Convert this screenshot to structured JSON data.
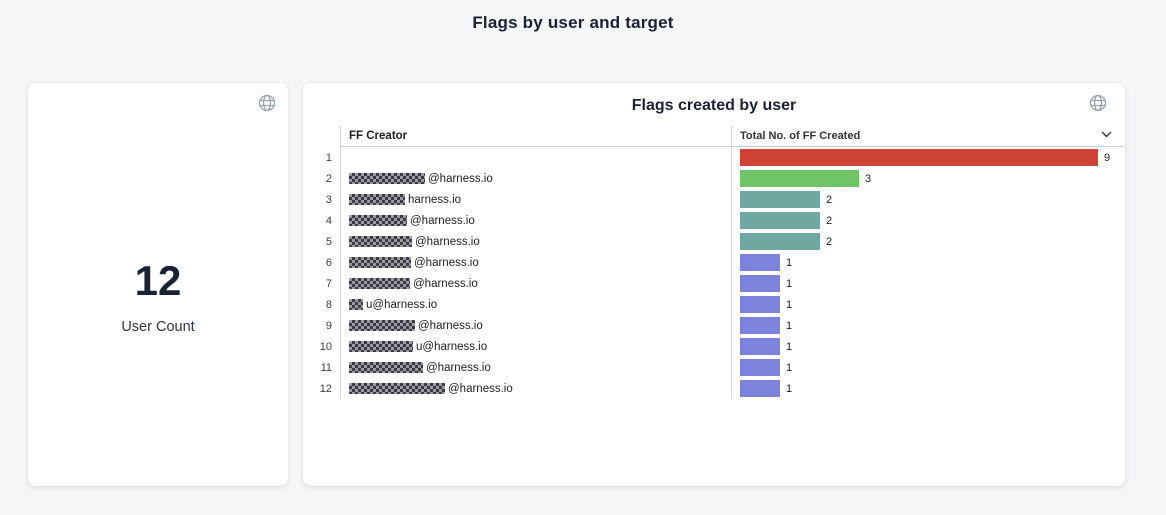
{
  "page": {
    "title": "Flags by user and target",
    "background": "#f4f6f8"
  },
  "user_count_card": {
    "value": "12",
    "label": "User Count"
  },
  "flags_card": {
    "title": "Flags created by user",
    "columns": {
      "creator": "FF Creator",
      "total": "Total No. of FF Created"
    },
    "max_value": 9,
    "rows": [
      {
        "num": "1",
        "creator_visible": "",
        "redact_width": 0,
        "value": 9,
        "color": "#ce4336"
      },
      {
        "num": "2",
        "creator_visible": " @harness.io",
        "redact_width": 76,
        "value": 3,
        "color": "#6fc465"
      },
      {
        "num": "3",
        "creator_visible": "harness.io",
        "redact_width": 56,
        "value": 2,
        "color": "#6fa8a0"
      },
      {
        "num": "4",
        "creator_visible": "@harness.io",
        "redact_width": 58,
        "value": 2,
        "color": "#6fa8a0"
      },
      {
        "num": "5",
        "creator_visible": "@harness.io",
        "redact_width": 63,
        "value": 2,
        "color": "#6fa8a0"
      },
      {
        "num": "6",
        "creator_visible": "@harness.io",
        "redact_width": 62,
        "value": 1,
        "color": "#7b83dc"
      },
      {
        "num": "7",
        "creator_visible": "@harness.io",
        "redact_width": 61,
        "value": 1,
        "color": "#7b83dc"
      },
      {
        "num": "8",
        "creator_visible": "u@harness.io",
        "redact_width": 14,
        "value": 1,
        "color": "#7b83dc"
      },
      {
        "num": "9",
        "creator_visible": "@harness.io",
        "redact_width": 66,
        "value": 1,
        "color": "#7b83dc"
      },
      {
        "num": "10",
        "creator_visible": "u@harness.io",
        "redact_width": 64,
        "value": 1,
        "color": "#7b83dc"
      },
      {
        "num": "11",
        "creator_visible": " @harness.io",
        "redact_width": 74,
        "value": 1,
        "color": "#7b83dc"
      },
      {
        "num": "12",
        "creator_visible": "@harness.io",
        "redact_width": 96,
        "value": 1,
        "color": "#7b83dc"
      }
    ]
  },
  "chart_data": [
    {
      "type": "table",
      "title": "User Count",
      "value": 12
    },
    {
      "type": "bar",
      "orientation": "horizontal",
      "title": "Flags created by user",
      "categories": [
        "1",
        "2",
        "3",
        "4",
        "5",
        "6",
        "7",
        "8",
        "9",
        "10",
        "11",
        "12"
      ],
      "values": [
        9,
        3,
        2,
        2,
        2,
        1,
        1,
        1,
        1,
        1,
        1,
        1
      ],
      "data_labels": [
        "9",
        "3",
        "2",
        "2",
        "2",
        "1",
        "1",
        "1",
        "1",
        "1",
        "1",
        "1"
      ],
      "bar_colors": [
        "#ce4336",
        "#6fc465",
        "#6fa8a0",
        "#6fa8a0",
        "#6fa8a0",
        "#7b83dc",
        "#7b83dc",
        "#7b83dc",
        "#7b83dc",
        "#7b83dc",
        "#7b83dc",
        "#7b83dc"
      ],
      "xlabel": "Total No. of FF Created",
      "ylabel": "FF Creator",
      "xlim": [
        0,
        9
      ],
      "grid": false,
      "legend": false
    }
  ]
}
